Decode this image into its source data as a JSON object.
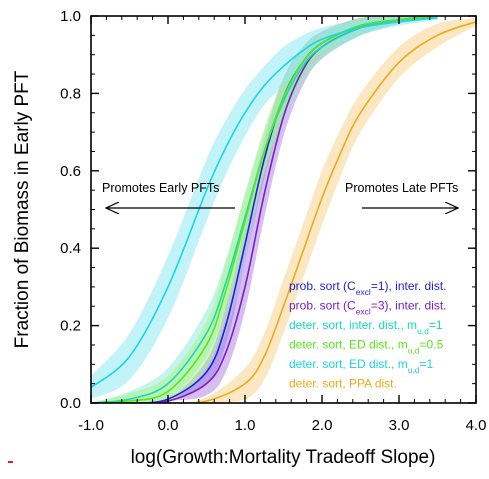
{
  "chart_data": {
    "type": "line",
    "title": "",
    "xlabel": "log(Growth:Mortality Tradeoff Slope)",
    "ylabel": "Fraction of Biomass in Early PFT",
    "xlim": [
      -1.0,
      4.0
    ],
    "ylim": [
      0.0,
      1.0
    ],
    "x_ticks": [
      "-1.0",
      "0.0",
      "1.0",
      "2.0",
      "3.0",
      "4.0"
    ],
    "y_ticks": [
      "0.0",
      "0.2",
      "0.4",
      "0.6",
      "0.8",
      "1.0"
    ],
    "grid": false,
    "legend_position": "bottom-right",
    "annotations": {
      "left_arrow_text": "Promotes Early PFTs",
      "right_arrow_text": "Promotes Late PFTs"
    },
    "series": [
      {
        "label": {
          "pre": "prob. sort (C",
          "sub": "excl",
          "post": "=1), inter. dist."
        },
        "color": "#1f1fdc",
        "band_color": "#7d7de6",
        "x": [
          -1.0,
          -0.5,
          0.0,
          0.5,
          0.75,
          1.0,
          1.25,
          1.5,
          1.75,
          2.0,
          2.5,
          3.0,
          3.5
        ],
        "y": [
          0.0,
          0.0,
          0.01,
          0.08,
          0.2,
          0.41,
          0.63,
          0.79,
          0.88,
          0.93,
          0.975,
          0.99,
          1.0
        ],
        "band": [
          0.0,
          0.0,
          0.0,
          0.03,
          0.05,
          0.05,
          0.05,
          0.05,
          0.04,
          0.03,
          0.02,
          0.01,
          0.0
        ]
      },
      {
        "label": {
          "pre": "prob. sort (C",
          "sub": "excl",
          "post": "=3), inter. dist."
        },
        "color": "#7a1fc8",
        "band_color": "#b488e0",
        "x": [
          -1.0,
          -0.5,
          0.0,
          0.5,
          0.75,
          1.0,
          1.25,
          1.5,
          1.75,
          2.0,
          2.5,
          3.0,
          3.5
        ],
        "y": [
          0.0,
          0.0,
          0.005,
          0.05,
          0.13,
          0.3,
          0.54,
          0.74,
          0.86,
          0.92,
          0.97,
          0.99,
          1.0
        ],
        "band": [
          0.0,
          0.0,
          0.0,
          0.03,
          0.05,
          0.06,
          0.06,
          0.05,
          0.04,
          0.03,
          0.02,
          0.01,
          0.0
        ]
      },
      {
        "label": {
          "pre": "deter. sort, inter. dist., m",
          "sub": "u,d",
          "post": "=1"
        },
        "color": "#18d8b8",
        "band_color": "#90ecdc",
        "x": [
          -1.0,
          -0.5,
          0.0,
          0.5,
          0.75,
          1.0,
          1.25,
          1.5,
          1.75,
          2.0,
          2.5,
          3.0,
          3.5
        ],
        "y": [
          0.0,
          0.01,
          0.05,
          0.18,
          0.31,
          0.48,
          0.65,
          0.78,
          0.87,
          0.92,
          0.97,
          0.99,
          1.0
        ],
        "band": [
          0.0,
          0.02,
          0.04,
          0.06,
          0.06,
          0.06,
          0.05,
          0.05,
          0.04,
          0.03,
          0.02,
          0.01,
          0.0
        ]
      },
      {
        "label": {
          "pre": "deter. sort, ED dist., m",
          "sub": "u,d",
          "post": "=0.5"
        },
        "color": "#56e81a",
        "band_color": "#b0f08a",
        "x": [
          -1.0,
          -0.5,
          0.0,
          0.5,
          0.75,
          1.0,
          1.25,
          1.5,
          1.75,
          2.0,
          2.5,
          3.0,
          3.5
        ],
        "y": [
          0.0,
          0.005,
          0.03,
          0.15,
          0.29,
          0.47,
          0.65,
          0.79,
          0.88,
          0.93,
          0.975,
          0.99,
          1.0
        ],
        "band": [
          0.0,
          0.02,
          0.04,
          0.06,
          0.07,
          0.07,
          0.06,
          0.05,
          0.04,
          0.03,
          0.02,
          0.01,
          0.0
        ]
      },
      {
        "label": {
          "pre": "deter. sort, ED dist., m",
          "sub": "u,d",
          "post": "=1"
        },
        "color": "#1ad4e8",
        "band_color": "#8eeaf4",
        "x": [
          -1.0,
          -0.5,
          0.0,
          0.5,
          0.75,
          1.0,
          1.25,
          1.5,
          1.75,
          2.0,
          2.5,
          3.0,
          3.5
        ],
        "y": [
          0.04,
          0.12,
          0.3,
          0.55,
          0.66,
          0.75,
          0.82,
          0.87,
          0.91,
          0.94,
          0.97,
          0.985,
          0.995
        ],
        "band": [
          0.03,
          0.06,
          0.08,
          0.08,
          0.07,
          0.06,
          0.05,
          0.05,
          0.04,
          0.03,
          0.02,
          0.01,
          0.005
        ]
      },
      {
        "label": {
          "pre": "deter. sort, PPA dist.",
          "sub": "",
          "post": ""
        },
        "color": "#f0a818",
        "band_color": "#f8d690",
        "x": [
          -1.0,
          -0.5,
          0.0,
          0.5,
          1.0,
          1.25,
          1.5,
          1.75,
          2.0,
          2.25,
          2.5,
          3.0,
          3.5,
          4.0
        ],
        "y": [
          0.0,
          0.0,
          0.0,
          0.005,
          0.05,
          0.12,
          0.25,
          0.39,
          0.53,
          0.65,
          0.75,
          0.88,
          0.95,
          0.985
        ],
        "band": [
          0.0,
          0.0,
          0.0,
          0.01,
          0.04,
          0.06,
          0.07,
          0.07,
          0.07,
          0.06,
          0.05,
          0.04,
          0.03,
          0.01
        ]
      }
    ]
  }
}
